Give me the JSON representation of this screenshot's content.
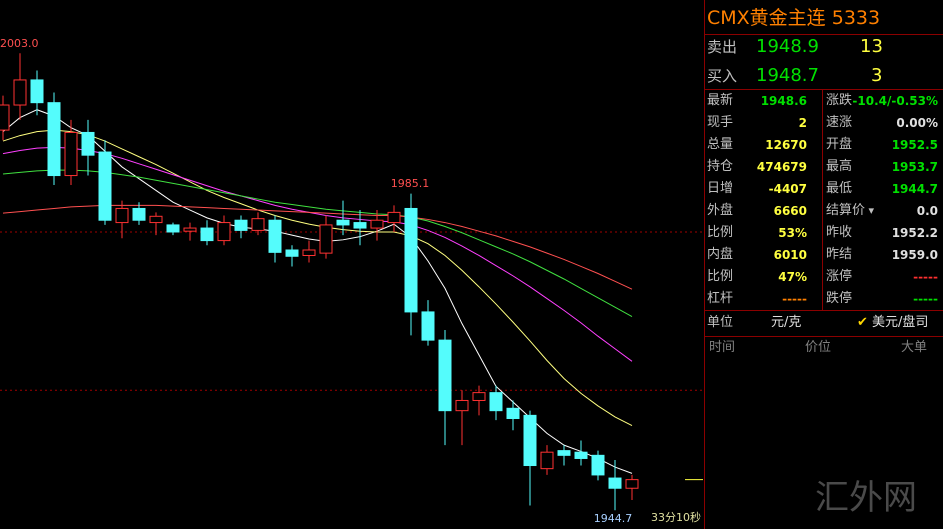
{
  "chart_data": {
    "type": "candlestick",
    "open": [
      1993.2,
      1996.4,
      1999.6,
      1996.7,
      1987.4,
      1992.9,
      1990.4,
      1981.4,
      1983.2,
      1981.4,
      1981.1,
      1980.3,
      1980.7,
      1979.1,
      1981.7,
      1980.4,
      1981.7,
      1977.9,
      1977.2,
      1977.5,
      1981.7,
      1981.4,
      1980.7,
      1981.4,
      1983.2,
      1970.0,
      1966.4,
      1957.4,
      1958.7,
      1959.7,
      1957.7,
      1956.8,
      1950.0,
      1952.3,
      1952.1,
      1951.7,
      1948.8,
      1947.5
    ],
    "high": [
      1997.6,
      2003.0,
      2000.8,
      1998.0,
      1994.5,
      1994.5,
      1991.9,
      1984.2,
      1984.0,
      1982.7,
      1981.4,
      1981.4,
      1981.7,
      1982.3,
      1982.3,
      1982.7,
      1982.3,
      1978.5,
      1979.1,
      1982.3,
      1984.2,
      1983.0,
      1983.0,
      1983.6,
      1985.1,
      1971.5,
      1967.7,
      1960.0,
      1960.6,
      1960.6,
      1958.7,
      1957.4,
      1953.0,
      1953.0,
      1953.6,
      1952.3,
      1951.1,
      1949.2
    ],
    "low": [
      1991.9,
      1994.5,
      1995.1,
      1986.2,
      1986.2,
      1987.4,
      1981.1,
      1979.4,
      1981.1,
      1979.8,
      1979.8,
      1979.1,
      1978.5,
      1978.5,
      1979.4,
      1979.8,
      1976.3,
      1975.8,
      1976.3,
      1976.8,
      1979.8,
      1978.5,
      1979.1,
      1980.2,
      1967.0,
      1965.7,
      1953.0,
      1953.0,
      1956.8,
      1956.2,
      1954.9,
      1945.3,
      1949.2,
      1950.4,
      1950.4,
      1948.5,
      1944.7,
      1946.0
    ],
    "close": [
      1996.4,
      1999.6,
      1996.7,
      1987.4,
      1992.9,
      1990.0,
      1981.7,
      1983.2,
      1981.7,
      1982.2,
      1980.2,
      1980.7,
      1979.1,
      1981.4,
      1980.4,
      1981.9,
      1977.6,
      1977.1,
      1977.9,
      1981.1,
      1981.1,
      1980.7,
      1981.7,
      1982.7,
      1970.0,
      1966.4,
      1957.4,
      1958.7,
      1959.7,
      1957.4,
      1956.4,
      1950.4,
      1952.1,
      1951.7,
      1951.3,
      1949.2,
      1947.5,
      1948.6
    ],
    "up_color": "#ff3232",
    "down_color": "#54fcfc",
    "series": [
      {
        "color": "#ffffff",
        "values": [
          1993.0,
          1994.8,
          1995.8,
          1995.0,
          1993.5,
          1992.5,
          1990.5,
          1988.5,
          1987.0,
          1985.5,
          1984.0,
          1983.0,
          1982.0,
          1981.3,
          1980.8,
          1980.6,
          1980.3,
          1979.8,
          1979.3,
          1979.0,
          1979.2,
          1979.6,
          1980.3,
          1981.2,
          1979.5,
          1976.5,
          1973.0,
          1968.5,
          1964.5,
          1960.5,
          1958.5,
          1956.5,
          1954.5,
          1953.0,
          1952.2,
          1951.3,
          1950.2,
          1949.4
        ]
      },
      {
        "color": "#ffff80",
        "values": [
          1991.8,
          1992.5,
          1993.0,
          1993.2,
          1993.0,
          1992.6,
          1991.8,
          1990.8,
          1989.8,
          1988.8,
          1987.7,
          1986.6,
          1985.5,
          1984.6,
          1983.8,
          1983.0,
          1982.3,
          1981.7,
          1981.2,
          1980.8,
          1980.5,
          1980.3,
          1980.2,
          1980.2,
          1979.7,
          1978.7,
          1977.2,
          1975.3,
          1973.2,
          1971.0,
          1968.7,
          1966.3,
          1963.8,
          1961.5,
          1959.6,
          1958.0,
          1956.6,
          1955.5
        ]
      },
      {
        "color": "#ff40ff",
        "values": [
          1990.2,
          1990.6,
          1990.9,
          1991.0,
          1990.9,
          1990.6,
          1990.2,
          1989.6,
          1988.9,
          1988.2,
          1987.5,
          1986.8,
          1986.1,
          1985.4,
          1984.8,
          1984.2,
          1983.6,
          1983.1,
          1982.7,
          1982.3,
          1982.0,
          1981.8,
          1981.6,
          1981.5,
          1981.1,
          1980.4,
          1979.5,
          1978.4,
          1977.2,
          1975.9,
          1974.6,
          1973.2,
          1971.7,
          1970.2,
          1968.6,
          1966.9,
          1965.3,
          1963.7
        ]
      },
      {
        "color": "#40e040",
        "values": [
          1987.6,
          1987.8,
          1988.0,
          1988.1,
          1988.1,
          1988.0,
          1987.8,
          1987.5,
          1987.2,
          1986.8,
          1986.4,
          1986.0,
          1985.6,
          1985.2,
          1984.8,
          1984.4,
          1984.0,
          1983.7,
          1983.4,
          1983.1,
          1982.9,
          1982.7,
          1982.5,
          1982.4,
          1982.1,
          1981.6,
          1980.9,
          1980.1,
          1979.2,
          1978.3,
          1977.4,
          1976.4,
          1975.3,
          1974.2,
          1973.0,
          1971.8,
          1970.6,
          1969.4
        ]
      },
      {
        "color": "#ff5050",
        "values": [
          1982.6,
          1982.8,
          1983.0,
          1983.2,
          1983.4,
          1983.5,
          1983.6,
          1983.6,
          1983.6,
          1983.6,
          1983.5,
          1983.4,
          1983.3,
          1983.2,
          1983.1,
          1983.0,
          1982.9,
          1982.8,
          1982.7,
          1982.6,
          1982.5,
          1982.4,
          1982.3,
          1982.3,
          1982.1,
          1981.8,
          1981.4,
          1980.9,
          1980.3,
          1979.7,
          1979.0,
          1978.3,
          1977.5,
          1976.7,
          1975.8,
          1974.9,
          1973.9,
          1972.9
        ]
      }
    ],
    "reference_lines": [
      1980.2,
      1960.0
    ],
    "ylim": [
      1942.3,
      2009.8
    ],
    "annotations": [
      "2003.0",
      "1985.1",
      "1944.7",
      "33分10秒"
    ]
  },
  "panel": {
    "title": "CMX黄金主连",
    "code": 5333,
    "ask": {
      "label": "卖出",
      "price": 1948.9,
      "volume": 13
    },
    "bid": {
      "label": "买入",
      "price": 1948.7,
      "volume": 3
    },
    "rows": [
      [
        {
          "label": "最新",
          "value": 1948.6
        },
        {
          "label": "涨跌",
          "value": "-10.4/-0.53%"
        }
      ],
      [
        {
          "label": "现手",
          "value": 2
        },
        {
          "label": "速涨",
          "value": "0.00%"
        }
      ],
      [
        {
          "label": "总量",
          "value": 12670
        },
        {
          "label": "开盘",
          "value": 1952.5
        }
      ],
      [
        {
          "label": "持仓",
          "value": 474679
        },
        {
          "label": "最高",
          "value": 1953.7
        }
      ],
      [
        {
          "label": "日增",
          "value": -4407
        },
        {
          "label": "最低",
          "value": 1944.7
        }
      ],
      [
        {
          "label": "外盘",
          "value": 6660
        },
        {
          "label": "结算价",
          "value": "0.0"
        }
      ],
      [
        {
          "label": "比例",
          "value": "53%"
        },
        {
          "label": "昨收",
          "value": 1952.2
        }
      ],
      [
        {
          "label": "内盘",
          "value": 6010
        },
        {
          "label": "昨结",
          "value": "1959.0"
        }
      ],
      [
        {
          "label": "比例",
          "value": "47%"
        },
        {
          "label": "涨停",
          "value": "-----"
        }
      ],
      [
        {
          "label": "杠杆",
          "value": "-----"
        },
        {
          "label": "跌停",
          "value": "-----"
        }
      ]
    ],
    "unit": {
      "label": "单位",
      "option1": "元/克",
      "option2": "美元/盘司"
    },
    "columns": [
      "时间",
      "价位",
      "大单"
    ]
  },
  "watermark": "汇外网"
}
